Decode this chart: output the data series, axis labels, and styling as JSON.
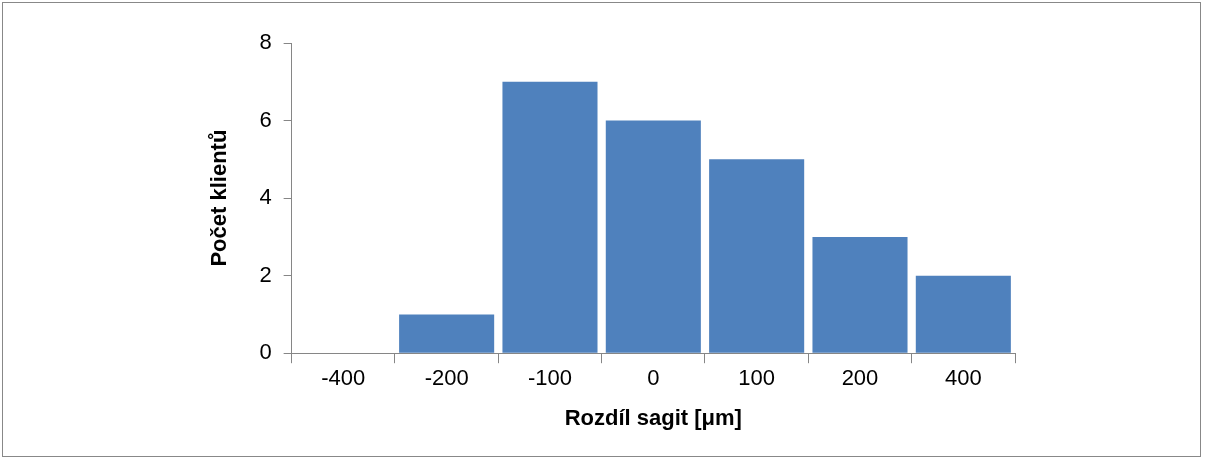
{
  "chart_data": {
    "type": "bar",
    "categories": [
      "-400",
      "-200",
      "-100",
      "0",
      "100",
      "200",
      "400"
    ],
    "values": [
      0,
      1,
      7,
      6,
      5,
      3,
      2
    ],
    "color": "#4f81bd",
    "xlabel": "Rozdíl sagit [μm]",
    "ylabel": "Počet klientů",
    "ylim": [
      0,
      8
    ],
    "yticks": [
      0,
      2,
      4,
      6,
      8
    ],
    "legend": false
  }
}
